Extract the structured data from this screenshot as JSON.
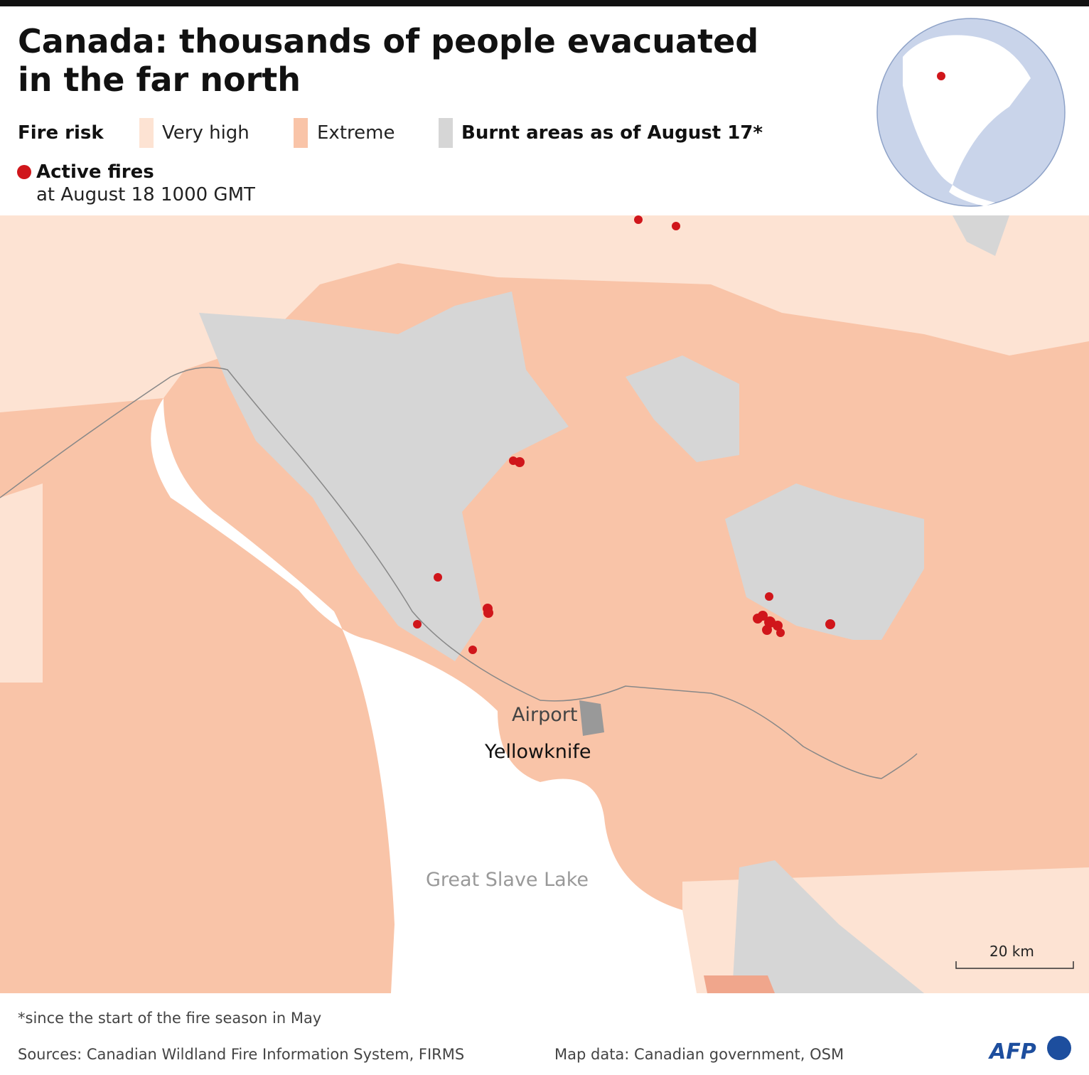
{
  "header": {
    "title_lines": [
      "Canada: thousands of people evacuated",
      "in the far north"
    ]
  },
  "legend": {
    "fire_risk_label": "Fire risk",
    "items": [
      "Very high",
      "Extreme",
      "Burnt areas as of August 17*"
    ],
    "active_fires": "Active fires",
    "active_fires_time": "at August 18 1000 GMT"
  },
  "map": {
    "labels": {
      "airport": "Airport",
      "city": "Yellowknife",
      "lake": "Great Slave Lake"
    },
    "scale_bar": "20 km"
  },
  "footer": {
    "note": "*since the start of the fire season in May",
    "sources": "Sources: Canadian Wildland Fire Information System, FIRMS",
    "map_data": "Map data: Canadian government, OSM",
    "logo": "AFP"
  }
}
